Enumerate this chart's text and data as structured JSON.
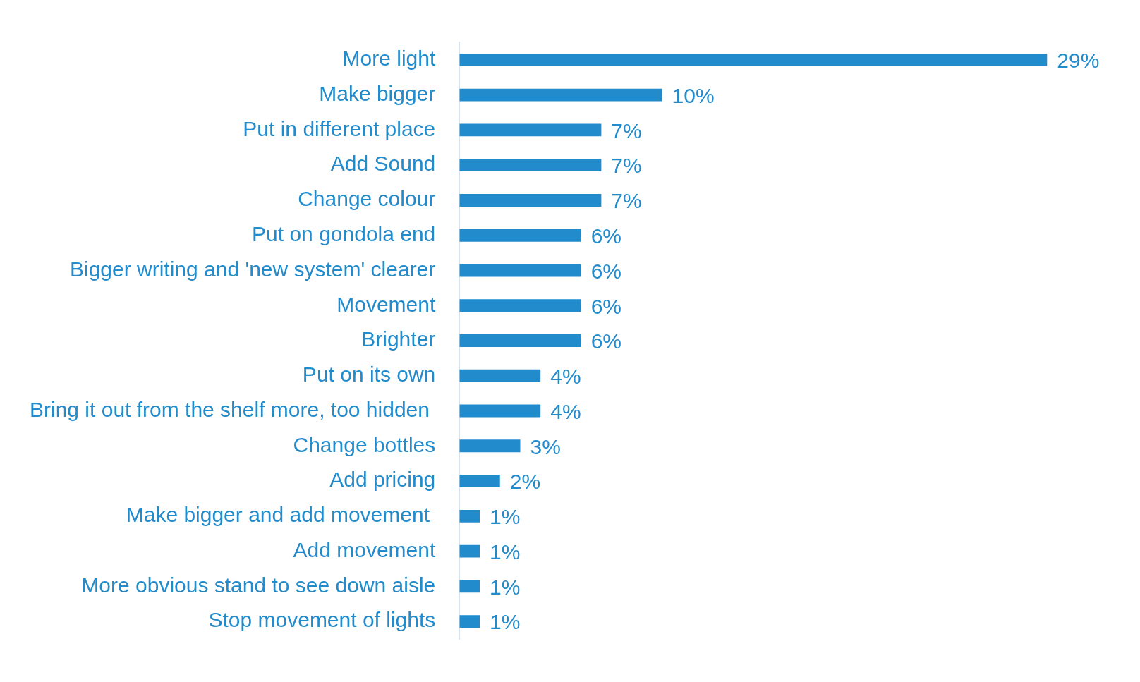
{
  "chart_data": {
    "type": "bar",
    "orientation": "horizontal",
    "categories": [
      "More light",
      "Make bigger",
      "Put in different place",
      "Add Sound",
      "Change colour",
      "Put on gondola end",
      "Bigger writing and 'new system' clearer",
      "Movement",
      "Brighter",
      "Put on its own",
      "Bring it out from the shelf more, too hidden ",
      "Change bottles",
      "Add pricing",
      "Make bigger and add movement ",
      "Add movement",
      "More obvious stand to see down aisle",
      "Stop movement of lights"
    ],
    "values": [
      29,
      10,
      7,
      7,
      7,
      6,
      6,
      6,
      6,
      4,
      4,
      3,
      2,
      1,
      1,
      1,
      1
    ],
    "value_labels": [
      "29%",
      "10%",
      "7%",
      "7%",
      "7%",
      "6%",
      "6%",
      "6%",
      "6%",
      "4%",
      "4%",
      "3%",
      "2%",
      "1%",
      "1%",
      "1%",
      "1%"
    ],
    "color": "#228bcc",
    "grid": false,
    "legend": false
  }
}
